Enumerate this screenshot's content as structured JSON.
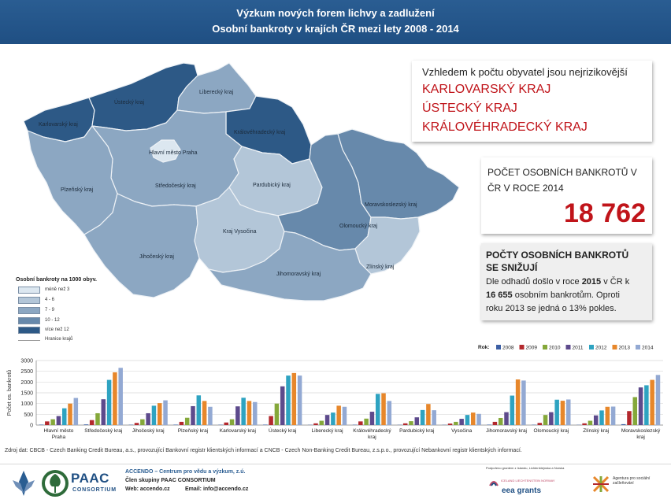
{
  "header": {
    "line1": "Výzkum nových forem lichvy a zadlužení",
    "line2": "Osobní bankroty v krajích ČR mezi lety 2008 - 2014"
  },
  "risk_box": {
    "intro": "Vzhledem k počtu obyvatel jsou nejrizikovější",
    "regions": [
      "KARLOVARSKÝ KRAJ",
      "ÚSTECKÝ KRAJ",
      "KRÁLOVÉHRADECKÝ KRAJ"
    ]
  },
  "count_box": {
    "line1": "POČET OSOBNÍCH BANKROTŮ V",
    "line2": "ČR V ROCE 2014",
    "value": "18 762"
  },
  "decline_box": {
    "title_line1": "POČTY OSOBNÍCH BANKROTŮ",
    "title_line2": "SE SNIŽUJÍ",
    "text_line1_a": "Dle odhadů došlo v roce ",
    "text_line1_b": "2015",
    "text_line1_c": " v ČR k",
    "text_line2": "16 655",
    "text_line2_b": " osobním bankrotům. Oproti",
    "text_line3": "roku 2013 se jedná o 13% pokles."
  },
  "map": {
    "legend_title": "Osobní bankroty na 1000 obyv.",
    "legend": [
      {
        "label": "méně než 3",
        "color": "#dce7f0"
      },
      {
        "label": "4 - 6",
        "color": "#b3c6d8"
      },
      {
        "label": "7 - 9",
        "color": "#8ca7c2"
      },
      {
        "label": "10 - 12",
        "color": "#6789ab"
      },
      {
        "label": "více než 12",
        "color": "#2d5986"
      }
    ],
    "border_label": "Hranice krajů",
    "regions": [
      {
        "key": "karlovarsky",
        "label": "Karlovarský kraj",
        "color": "#2d5986"
      },
      {
        "key": "ustecky",
        "label": "Ústecký kraj",
        "color": "#2d5986"
      },
      {
        "key": "liberecky",
        "label": "Liberecký kraj",
        "color": "#8ca7c2"
      },
      {
        "key": "kralovehradecky",
        "label": "Královéhradecký kraj",
        "color": "#2d5986"
      },
      {
        "key": "praha",
        "label": "Hlavní město Praha",
        "color": "#dce7f0"
      },
      {
        "key": "stredocesky",
        "label": "Středočeský kraj",
        "color": "#8ca7c2"
      },
      {
        "key": "plzensky",
        "label": "Plzeňský kraj",
        "color": "#8ca7c2"
      },
      {
        "key": "pardubicky",
        "label": "Pardubický kraj",
        "color": "#b3c6d8"
      },
      {
        "key": "moravskoslezsky",
        "label": "Moravskoslezský kraj",
        "color": "#6789ab"
      },
      {
        "key": "olomoucky",
        "label": "Olomoucký kraj",
        "color": "#6789ab"
      },
      {
        "key": "vysocina",
        "label": "Kraj Vysočina",
        "color": "#b3c6d8"
      },
      {
        "key": "jihocesky",
        "label": "Jihočeský kraj",
        "color": "#8ca7c2"
      },
      {
        "key": "jihomoravsky",
        "label": "Jihomoravský kraj",
        "color": "#8ca7c2"
      },
      {
        "key": "zlinsky",
        "label": "Zlínský kraj",
        "color": "#b3c6d8"
      }
    ]
  },
  "chart_data": {
    "type": "bar",
    "title": "",
    "xlabel": "",
    "ylabel": "Počet os. bankrotů",
    "ylim": [
      0,
      3000
    ],
    "yticks": [
      0,
      500,
      1000,
      1500,
      2000,
      2500,
      3000
    ],
    "grid": true,
    "legend_title": "Rok:",
    "legend_position": "top-right",
    "categories": [
      "Hlavní město Praha",
      "Středočeský kraj",
      "Jihočeský kraj",
      "Plzeňský kraj",
      "Karlovarský kraj",
      "Ústecký kraj",
      "Liberecký kraj",
      "Královéhradecký kraj",
      "Pardubický kraj",
      "Vysočina",
      "Jihomoravský kraj",
      "Olomoucký kraj",
      "Zlínský kraj",
      "Moravskoslezský kraj"
    ],
    "category_lines": [
      [
        "Hlavní město",
        "Praha"
      ],
      [
        "Středočeský kraj"
      ],
      [
        "Jihočeský kraj"
      ],
      [
        "Plzeňský kraj"
      ],
      [
        "Karlovarský kraj"
      ],
      [
        "Ústecký kraj"
      ],
      [
        "Liberecký kraj"
      ],
      [
        "Královéhradecký",
        "kraj"
      ],
      [
        "Pardubický kraj"
      ],
      [
        "Vysočina"
      ],
      [
        "Jihomoravský kraj"
      ],
      [
        "Olomoucký kraj"
      ],
      [
        "Zlínský kraj"
      ],
      [
        "Moravskoslezský",
        "kraj"
      ]
    ],
    "series": [
      {
        "name": "2008",
        "color": "#3c5fa4",
        "values": [
          20,
          30,
          15,
          20,
          15,
          20,
          10,
          15,
          10,
          10,
          20,
          15,
          10,
          40
        ]
      },
      {
        "name": "2009",
        "color": "#b3282d",
        "values": [
          170,
          230,
          100,
          150,
          120,
          420,
          80,
          170,
          80,
          70,
          150,
          100,
          80,
          650
        ]
      },
      {
        "name": "2010",
        "color": "#85a83a",
        "values": [
          270,
          550,
          270,
          340,
          270,
          1000,
          200,
          300,
          180,
          150,
          330,
          470,
          200,
          1300
        ]
      },
      {
        "name": "2011",
        "color": "#5d4a8c",
        "values": [
          420,
          1200,
          550,
          880,
          870,
          1800,
          470,
          620,
          360,
          290,
          600,
          600,
          450,
          1750
        ]
      },
      {
        "name": "2012",
        "color": "#2ea3c1",
        "values": [
          780,
          2100,
          900,
          1380,
          1270,
          2300,
          580,
          1450,
          700,
          470,
          1370,
          1180,
          680,
          1850
        ]
      },
      {
        "name": "2013",
        "color": "#e7872b",
        "values": [
          1000,
          2450,
          1020,
          1120,
          1120,
          2420,
          900,
          1480,
          980,
          580,
          2120,
          1130,
          850,
          2100
        ]
      },
      {
        "name": "2014",
        "color": "#93a9d3",
        "values": [
          1260,
          2660,
          1150,
          850,
          1070,
          2300,
          850,
          1120,
          690,
          520,
          2070,
          1190,
          860,
          2330
        ]
      }
    ]
  },
  "source": "Zdroj dat: CBCB - Czech Banking Credit Bureau, a.s., provozující Bankovní registr klientských informací a CNCB - Czech Non-Banking Credit Bureau, z.s.p.o., provozující Nebankovní registr klientských informací.",
  "footer": {
    "paac": "PAAC",
    "consortium": "CONSORTIUM",
    "accendo": "ACCENDO – Centrum pro vědu a výzkum, z.ú.",
    "member": "Člen skupiny PAAC CONSORTIUM",
    "web": "Web: accendo.cz",
    "email": "Email: info@accendo.cz",
    "funding": "Podpořeno grantem z Islandu, Lichtenštejnska a Norska",
    "eea_small": "ICELAND LIECHTENSTEIN NORWAY",
    "eea": "eea grants",
    "agency": "Agentura pro sociální začleňování"
  }
}
